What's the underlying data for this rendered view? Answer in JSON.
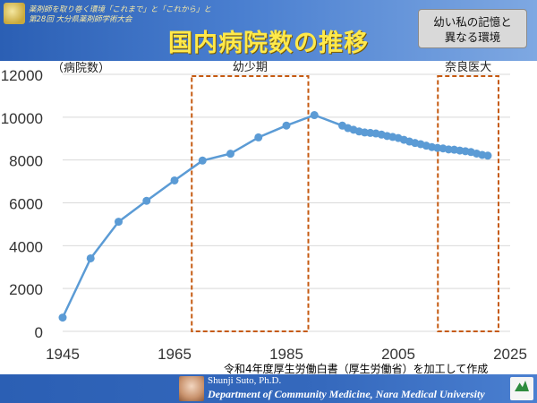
{
  "header": {
    "conference_line1": "薬剤師を取り巻く環境「これまで」と「これから」と",
    "conference_line2": "第28回 大分県薬剤師学術大会",
    "title": "国内病院数の推移"
  },
  "callout": {
    "line1": "幼い私の記憶と",
    "line2": "異なる環境"
  },
  "source_note": "令和4年度厚生労働白書（厚生労働省）を加工して作成",
  "footer": {
    "name": "Shunji Suto, Ph.D.",
    "department": "Department of Community Medicine, Nara Medical University"
  },
  "chart_data": {
    "type": "line",
    "ylabel": "（病院数）",
    "xlim": [
      1945,
      2025
    ],
    "ylim": [
      0,
      12000
    ],
    "x_ticks": [
      1945,
      1965,
      1985,
      2005,
      2025
    ],
    "y_ticks": [
      0,
      2000,
      4000,
      6000,
      8000,
      10000,
      12000
    ],
    "grid": "horizontal",
    "series": [
      {
        "color": "#5b9bd5",
        "points": [
          [
            1945,
            645
          ],
          [
            1950,
            3408
          ],
          [
            1955,
            5119
          ],
          [
            1960,
            6094
          ],
          [
            1965,
            7047
          ],
          [
            1970,
            7974
          ],
          [
            1975,
            8294
          ],
          [
            1980,
            9055
          ],
          [
            1985,
            9608
          ],
          [
            1990,
            10096
          ],
          [
            1995,
            9606
          ],
          [
            1996,
            9490
          ],
          [
            1997,
            9413
          ],
          [
            1998,
            9333
          ],
          [
            1999,
            9286
          ],
          [
            2000,
            9266
          ],
          [
            2001,
            9239
          ],
          [
            2002,
            9187
          ],
          [
            2003,
            9122
          ],
          [
            2004,
            9077
          ],
          [
            2005,
            9026
          ],
          [
            2006,
            8943
          ],
          [
            2007,
            8862
          ],
          [
            2008,
            8794
          ],
          [
            2009,
            8739
          ],
          [
            2010,
            8670
          ],
          [
            2011,
            8605
          ],
          [
            2012,
            8565
          ],
          [
            2013,
            8540
          ],
          [
            2014,
            8493
          ],
          [
            2015,
            8480
          ],
          [
            2016,
            8442
          ],
          [
            2017,
            8412
          ],
          [
            2018,
            8372
          ],
          [
            2019,
            8300
          ],
          [
            2020,
            8238
          ],
          [
            2021,
            8205
          ]
        ]
      }
    ],
    "highlight_ranges": [
      {
        "label": "幼少期",
        "x_range": [
          1970,
          1987
        ]
      },
      {
        "label": "奈良医大",
        "x_range": [
          2014,
          2021
        ]
      }
    ]
  }
}
